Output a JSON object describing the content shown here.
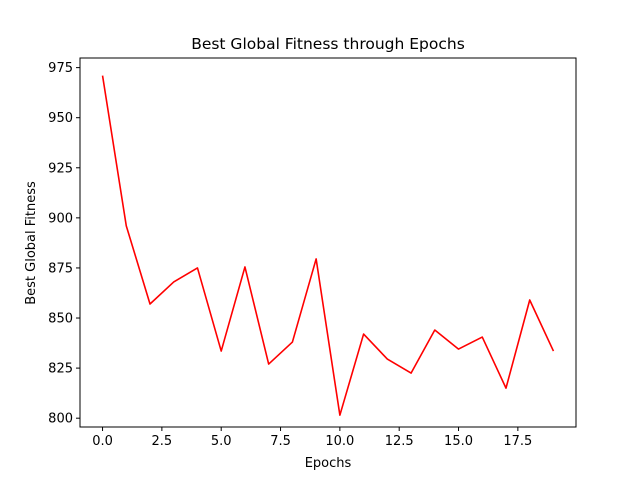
{
  "chart_data": {
    "type": "line",
    "title": "Best Global Fitness through Epochs",
    "xlabel": "Epochs",
    "ylabel": "Best Global Fitness",
    "xlim": [
      -0.95,
      19.95
    ],
    "ylim": [
      795.6,
      979.8
    ],
    "xticks": [
      0,
      2.5,
      5,
      7.5,
      10,
      12.5,
      15,
      17.5
    ],
    "xtick_labels": [
      "0.0",
      "2.5",
      "5.0",
      "7.5",
      "10.0",
      "12.5",
      "15.0",
      "17.5"
    ],
    "yticks": [
      800,
      825,
      850,
      875,
      900,
      925,
      950,
      975
    ],
    "ytick_labels": [
      "800",
      "825",
      "850",
      "875",
      "900",
      "925",
      "950",
      "975"
    ],
    "grid": false,
    "series": [
      {
        "color": "#ff0000",
        "x": [
          0,
          1,
          2,
          3,
          4,
          5,
          6,
          7,
          8,
          9,
          10,
          11,
          12,
          13,
          14,
          15,
          16,
          17,
          18,
          19
        ],
        "values": [
          971,
          896,
          857,
          868,
          875,
          833.5,
          875.5,
          827,
          838,
          879.5,
          801.5,
          842,
          829.5,
          822.5,
          844,
          834.5,
          840.5,
          815,
          859,
          833.5
        ]
      }
    ]
  }
}
